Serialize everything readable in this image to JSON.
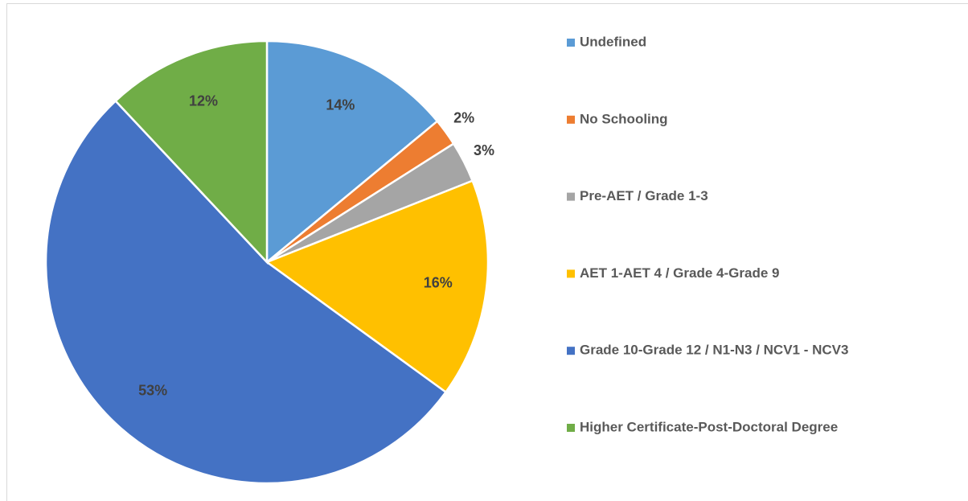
{
  "chart_data": {
    "type": "pie",
    "categories": [
      "Undefined",
      "No Schooling",
      "Pre-AET / Grade 1-3",
      "AET 1-AET 4 / Grade 4-Grade 9",
      "Grade 10-Grade 12 / N1-N3 / NCV1 - NCV3",
      "Higher Certificate-Post-Doctoral Degree"
    ],
    "values": [
      14,
      2,
      3,
      16,
      53,
      12
    ],
    "value_labels": [
      "14%",
      "2%",
      "3%",
      "16%",
      "53%",
      "12%"
    ],
    "colors": [
      "#5b9bd5",
      "#ed7d31",
      "#a5a5a5",
      "#ffc000",
      "#4472c4",
      "#70ad47"
    ],
    "legend": "right"
  }
}
